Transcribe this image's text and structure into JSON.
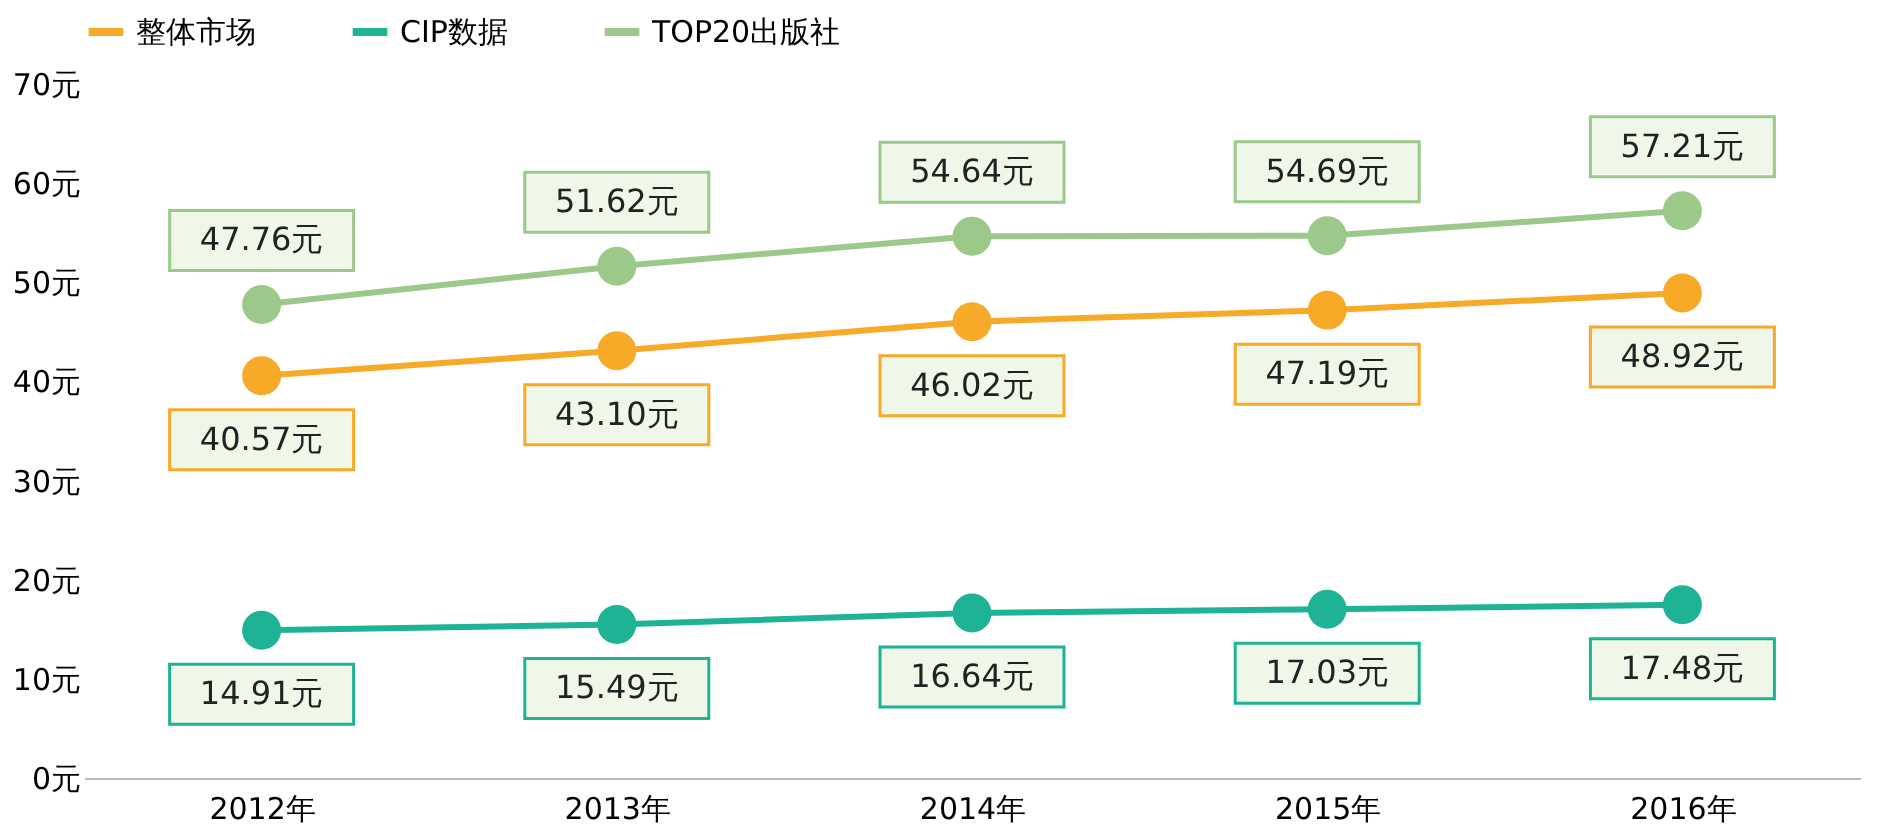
{
  "chart_data": {
    "type": "line",
    "categories": [
      "2012年",
      "2013年",
      "2014年",
      "2015年",
      "2016年"
    ],
    "series": [
      {
        "name": "整体市场",
        "color": "#f7a928",
        "values": [
          40.57,
          43.1,
          46.02,
          47.19,
          48.92
        ],
        "value_labels": [
          "40.57元",
          "43.10元",
          "46.02元",
          "47.19元",
          "48.92元"
        ]
      },
      {
        "name": "CIP数据",
        "color": "#1db394",
        "values": [
          14.91,
          15.49,
          16.64,
          17.03,
          17.48
        ],
        "value_labels": [
          "14.91元",
          "15.49元",
          "16.64元",
          "17.03元",
          "17.48元"
        ]
      },
      {
        "name": "TOP20出版社",
        "color": "#9cc98a",
        "values": [
          47.76,
          51.62,
          54.64,
          54.69,
          57.21
        ],
        "value_labels": [
          "47.76元",
          "51.62元",
          "54.64元",
          "54.69元",
          "57.21元"
        ]
      }
    ],
    "ylim": [
      0,
      70
    ],
    "yticks": [
      {
        "value": 0,
        "label": "0元"
      },
      {
        "value": 10,
        "label": "10元"
      },
      {
        "value": 20,
        "label": "20元"
      },
      {
        "value": 30,
        "label": "30元"
      },
      {
        "value": 40,
        "label": "40元"
      },
      {
        "value": 50,
        "label": "50元"
      },
      {
        "value": 60,
        "label": "60元"
      },
      {
        "value": 70,
        "label": "70元"
      }
    ],
    "grid": false,
    "legend": "top",
    "marker": "circle",
    "line_style": "solid"
  }
}
